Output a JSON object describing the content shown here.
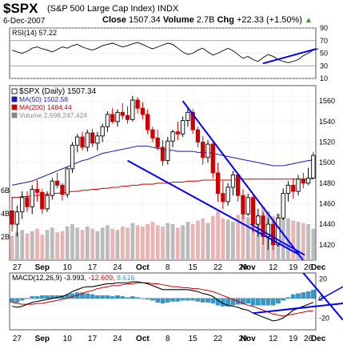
{
  "header": {
    "symbol": "$SPX",
    "name": "(S&P 500 Large Cap Index)",
    "exchange": "INDX",
    "date": "6-Dec-2007",
    "close_label": "Close",
    "close_value": "1507.34",
    "volume_label": "Volume",
    "volume_value": "2.7B",
    "chg_label": "Chg",
    "chg_value": "+22.33 (+1.50%)",
    "chg_arrow": "▲"
  },
  "colors": {
    "up": "#000000",
    "down": "#cc0000",
    "ma50": "#1a1aa8",
    "ma200": "#cc0000",
    "trendline": "#0000ff",
    "macd_hist": "#3399cc",
    "volume_up": "#bbbbbb",
    "volume_down": "#e8b4b4"
  },
  "chart_data": [
    {
      "type": "line",
      "title": "RSI(14) 57.22",
      "legend": "RSI(14) 57.22",
      "ylim": [
        10,
        90
      ],
      "yticks": [
        90,
        70,
        50,
        30,
        10
      ],
      "reference_lines": [
        70,
        30
      ],
      "values": [
        55,
        52,
        50,
        53,
        58,
        60,
        57,
        55,
        52,
        56,
        60,
        58,
        62,
        64,
        60,
        57,
        55,
        58,
        62,
        64,
        66,
        63,
        60,
        62,
        65,
        67,
        64,
        60,
        57,
        60,
        63,
        66,
        64,
        58,
        52,
        48,
        50,
        55,
        58,
        52,
        47,
        50,
        54,
        58,
        54,
        48,
        42,
        45,
        40,
        37,
        43,
        48,
        45,
        40,
        37,
        35,
        37,
        40,
        46,
        50,
        55,
        57
      ],
      "annotation": "rising trendline"
    },
    {
      "type": "candlestick",
      "title": "$SPX (Daily) 1507.34",
      "legend": [
        {
          "name": "$SPX (Daily) 1507.34"
        },
        {
          "name": "MA(50) 1502.58"
        },
        {
          "name": "MA(200) 1484.44"
        },
        {
          "name": "Volume 2,698,247,424"
        }
      ],
      "ylim": [
        1405,
        1575
      ],
      "yticks": [
        1560,
        1540,
        1520,
        1500,
        1480,
        1460,
        1440,
        1420
      ],
      "volume_ticks": [
        "6B",
        "4B",
        "2B"
      ],
      "x_tick_labels": [
        "27",
        "Sep",
        "10",
        "17",
        "24",
        "Oct",
        "8",
        "15",
        "22",
        "29",
        "Nov",
        "12",
        "19",
        "26",
        "Dec"
      ],
      "ohlc": [
        [
          1453,
          1467,
          1433,
          1440
        ],
        [
          1440,
          1458,
          1428,
          1452
        ],
        [
          1452,
          1472,
          1445,
          1466
        ],
        [
          1466,
          1472,
          1452,
          1457
        ],
        [
          1457,
          1478,
          1450,
          1474
        ],
        [
          1474,
          1483,
          1462,
          1471
        ],
        [
          1471,
          1474,
          1450,
          1455
        ],
        [
          1455,
          1472,
          1452,
          1468
        ],
        [
          1468,
          1485,
          1464,
          1482
        ],
        [
          1482,
          1490,
          1475,
          1478
        ],
        [
          1478,
          1480,
          1463,
          1469
        ],
        [
          1469,
          1496,
          1466,
          1494
        ],
        [
          1494,
          1520,
          1490,
          1517
        ],
        [
          1517,
          1528,
          1510,
          1525
        ],
        [
          1525,
          1530,
          1512,
          1515
        ],
        [
          1515,
          1532,
          1511,
          1529
        ],
        [
          1529,
          1533,
          1515,
          1519
        ],
        [
          1519,
          1530,
          1512,
          1526
        ],
        [
          1526,
          1538,
          1520,
          1535
        ],
        [
          1535,
          1550,
          1530,
          1547
        ],
        [
          1547,
          1553,
          1538,
          1540
        ],
        [
          1540,
          1552,
          1535,
          1549
        ],
        [
          1549,
          1558,
          1542,
          1546
        ],
        [
          1546,
          1555,
          1538,
          1542
        ],
        [
          1542,
          1565,
          1540,
          1561
        ],
        [
          1561,
          1564,
          1548,
          1553
        ],
        [
          1553,
          1559,
          1542,
          1547
        ],
        [
          1547,
          1552,
          1528,
          1532
        ],
        [
          1532,
          1535,
          1520,
          1524
        ],
        [
          1524,
          1532,
          1512,
          1515
        ],
        [
          1515,
          1522,
          1497,
          1502
        ],
        [
          1502,
          1525,
          1498,
          1521
        ],
        [
          1521,
          1532,
          1515,
          1530
        ],
        [
          1530,
          1540,
          1522,
          1528
        ],
        [
          1528,
          1545,
          1525,
          1541
        ],
        [
          1541,
          1554,
          1535,
          1549
        ],
        [
          1549,
          1552,
          1528,
          1532
        ],
        [
          1532,
          1535,
          1515,
          1520
        ],
        [
          1520,
          1526,
          1498,
          1505
        ],
        [
          1505,
          1522,
          1500,
          1518
        ],
        [
          1518,
          1520,
          1485,
          1490
        ],
        [
          1490,
          1500,
          1462,
          1470
        ],
        [
          1470,
          1482,
          1455,
          1462
        ],
        [
          1462,
          1480,
          1458,
          1476
        ],
        [
          1476,
          1492,
          1468,
          1488
        ],
        [
          1488,
          1490,
          1462,
          1468
        ],
        [
          1468,
          1474,
          1445,
          1450
        ],
        [
          1450,
          1470,
          1448,
          1466
        ],
        [
          1466,
          1468,
          1432,
          1440
        ],
        [
          1440,
          1455,
          1428,
          1448
        ],
        [
          1448,
          1452,
          1420,
          1428
        ],
        [
          1428,
          1446,
          1415,
          1440
        ],
        [
          1440,
          1445,
          1415,
          1420
        ],
        [
          1420,
          1450,
          1418,
          1446
        ],
        [
          1446,
          1475,
          1444,
          1470
        ],
        [
          1470,
          1482,
          1462,
          1478
        ],
        [
          1478,
          1485,
          1465,
          1472
        ],
        [
          1472,
          1488,
          1468,
          1484
        ],
        [
          1484,
          1490,
          1475,
          1480
        ],
        [
          1480,
          1495,
          1478,
          1485
        ],
        [
          1485,
          1510,
          1484,
          1507
        ]
      ],
      "ma50": [
        1478,
        1479,
        1480,
        1481,
        1482,
        1484,
        1486,
        1488,
        1490,
        1492,
        1494,
        1496,
        1498,
        1500,
        1502,
        1503,
        1505,
        1507,
        1509,
        1510,
        1511,
        1512,
        1513,
        1514,
        1515,
        1516,
        1516,
        1516,
        1515,
        1514,
        1513,
        1512,
        1512,
        1511,
        1511,
        1511,
        1511,
        1510,
        1510,
        1510,
        1509,
        1508,
        1507,
        1506,
        1505,
        1504,
        1503,
        1502,
        1501,
        1500,
        1499,
        1498,
        1497,
        1497,
        1497,
        1498,
        1499,
        1500,
        1501,
        1502,
        1502.58
      ],
      "ma200": [
        1466,
        1466,
        1467,
        1467,
        1468,
        1468,
        1469,
        1469,
        1470,
        1470,
        1471,
        1471,
        1472,
        1472,
        1473,
        1473,
        1474,
        1474,
        1475,
        1475,
        1476,
        1476,
        1477,
        1477,
        1478,
        1478,
        1479,
        1479,
        1479,
        1480,
        1480,
        1480,
        1481,
        1481,
        1481,
        1482,
        1482,
        1482,
        1483,
        1483,
        1483,
        1483,
        1483,
        1483,
        1483,
        1484,
        1484,
        1484,
        1484,
        1484,
        1484,
        1484,
        1484,
        1484,
        1484,
        1484,
        1484,
        1484,
        1484,
        1484,
        1484.44
      ],
      "volume": [
        2.1,
        2.4,
        2.6,
        2.3,
        2.5,
        2.7,
        2.2,
        2.6,
        2.8,
        2.4,
        2.5,
        2.9,
        3.1,
        2.8,
        2.6,
        2.9,
        2.7,
        2.5,
        2.8,
        3.0,
        2.7,
        2.6,
        2.9,
        2.8,
        3.2,
        3.0,
        2.9,
        3.1,
        3.3,
        3.0,
        2.9,
        3.2,
        3.1,
        2.8,
        3.0,
        3.3,
        3.1,
        3.4,
        3.6,
        3.2,
        3.8,
        4.2,
        3.6,
        3.5,
        3.3,
        3.9,
        4.1,
        3.7,
        4.4,
        3.9,
        4.6,
        4.2,
        3.8,
        4.0,
        3.9,
        3.6,
        3.4,
        3.3,
        3.2,
        3.1,
        2.7
      ],
      "annotation": "falling wedge trendlines"
    },
    {
      "type": "line",
      "title": "MACD(12,26,9) -3.993, -12.609, 8.616",
      "legend": [
        "MACD(12,26,9) -3.993,",
        "-12.609,",
        "8.616"
      ],
      "ylim": [
        -32,
        26
      ],
      "yticks": [
        20,
        0,
        -20
      ],
      "series": [
        {
          "name": "MACD",
          "values": [
            -8,
            -9,
            -8,
            -6,
            -4,
            -3,
            -2,
            -1,
            0,
            1,
            2,
            4,
            7,
            9,
            11,
            12,
            12,
            13,
            14,
            15,
            15,
            16,
            16,
            16,
            17,
            17,
            16,
            15,
            13,
            11,
            9,
            9,
            9,
            9,
            9,
            9,
            8,
            7,
            5,
            4,
            2,
            -2,
            -5,
            -7,
            -8,
            -9,
            -11,
            -12,
            -15,
            -17,
            -19,
            -21,
            -23,
            -22,
            -20,
            -16,
            -12,
            -10,
            -8,
            -6,
            -3.993
          ]
        },
        {
          "name": "Signal",
          "values": [
            -4,
            -5,
            -6,
            -6,
            -6,
            -5,
            -5,
            -4,
            -3,
            -2,
            -1,
            0,
            2,
            3,
            5,
            7,
            8,
            10,
            11,
            12,
            13,
            13,
            14,
            15,
            15,
            16,
            16,
            16,
            15,
            15,
            14,
            13,
            12,
            12,
            11,
            11,
            10,
            10,
            9,
            8,
            7,
            5,
            3,
            1,
            -1,
            -3,
            -5,
            -7,
            -8,
            -10,
            -12,
            -14,
            -16,
            -17,
            -18,
            -17,
            -16,
            -15,
            -14,
            -13,
            -12.609
          ]
        },
        {
          "name": "Histogram",
          "values": [
            -4,
            -4,
            -2,
            0,
            2,
            2,
            3,
            3,
            3,
            3,
            3,
            4,
            5,
            6,
            6,
            5,
            4,
            3,
            3,
            3,
            2,
            3,
            2,
            1,
            2,
            1,
            0,
            -1,
            -2,
            -4,
            -5,
            -4,
            -3,
            -3,
            -2,
            -2,
            -2,
            -3,
            -4,
            -4,
            -5,
            -7,
            -8,
            -8,
            -7,
            -6,
            -6,
            -5,
            -7,
            -7,
            -7,
            -7,
            -7,
            -5,
            -2,
            1,
            4,
            5,
            6,
            7,
            8.616
          ]
        }
      ],
      "x_tick_labels": [
        "27",
        "Sep",
        "10",
        "17",
        "24",
        "Oct",
        "8",
        "15",
        "22",
        "29",
        "Nov",
        "12",
        "19",
        "26",
        "Dec"
      ],
      "annotation": "converging trendlines"
    }
  ]
}
